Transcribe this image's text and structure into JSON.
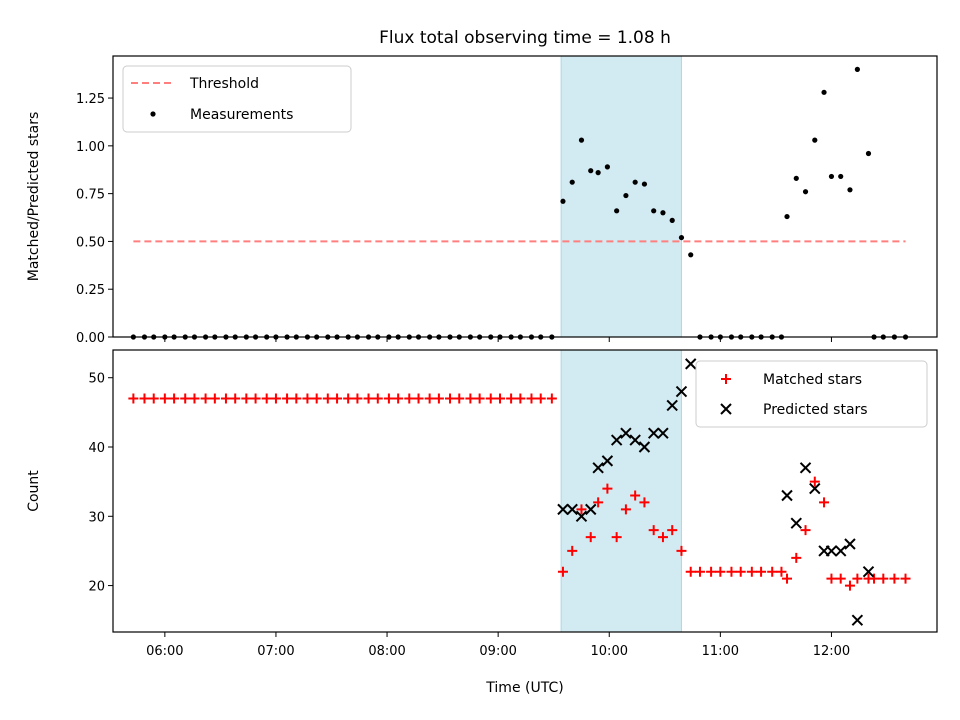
{
  "title": "Flux total observing time = 1.08 h",
  "colors": {
    "threshold": "#ff7f7f",
    "measurement": "#000000",
    "matched": "#ff0000",
    "predicted": "#000000",
    "span": "#add8e6"
  },
  "chart_data": [
    {
      "type": "scatter",
      "ylabel": "Matched/Predicted stars",
      "xlim": [
        "05:32",
        "12:57"
      ],
      "ylim": [
        0,
        1.47
      ],
      "yticks": [
        "0.00",
        "0.25",
        "0.50",
        "0.75",
        "1.00",
        "1.25"
      ],
      "highlight_span": [
        "09:34",
        "10:39"
      ],
      "legend": {
        "position": "top-left",
        "entries": [
          "Threshold",
          "Measurements"
        ]
      },
      "threshold": {
        "name": "Threshold",
        "y": 0.5,
        "x_range": [
          "05:43",
          "12:40"
        ]
      },
      "series": [
        {
          "name": "Measurements",
          "points": [
            [
              "05:43",
              0
            ],
            [
              "05:49",
              0
            ],
            [
              "05:54",
              0
            ],
            [
              "06:00",
              0
            ],
            [
              "06:05",
              0
            ],
            [
              "06:11",
              0
            ],
            [
              "06:16",
              0
            ],
            [
              "06:22",
              0
            ],
            [
              "06:27",
              0
            ],
            [
              "06:33",
              0
            ],
            [
              "06:38",
              0
            ],
            [
              "06:44",
              0
            ],
            [
              "06:49",
              0
            ],
            [
              "06:55",
              0
            ],
            [
              "07:00",
              0
            ],
            [
              "07:06",
              0
            ],
            [
              "07:11",
              0
            ],
            [
              "07:17",
              0
            ],
            [
              "07:22",
              0
            ],
            [
              "07:28",
              0
            ],
            [
              "07:33",
              0
            ],
            [
              "07:39",
              0
            ],
            [
              "07:44",
              0
            ],
            [
              "07:50",
              0
            ],
            [
              "07:55",
              0
            ],
            [
              "08:01",
              0
            ],
            [
              "08:06",
              0
            ],
            [
              "08:12",
              0
            ],
            [
              "08:17",
              0
            ],
            [
              "08:23",
              0
            ],
            [
              "08:28",
              0
            ],
            [
              "08:34",
              0
            ],
            [
              "08:39",
              0
            ],
            [
              "08:45",
              0
            ],
            [
              "08:50",
              0
            ],
            [
              "08:56",
              0
            ],
            [
              "09:01",
              0
            ],
            [
              "09:07",
              0
            ],
            [
              "09:12",
              0
            ],
            [
              "09:18",
              0
            ],
            [
              "09:23",
              0
            ],
            [
              "09:29",
              0
            ],
            [
              "09:35",
              0.71
            ],
            [
              "09:40",
              0.81
            ],
            [
              "09:45",
              1.03
            ],
            [
              "09:50",
              0.87
            ],
            [
              "09:54",
              0.86
            ],
            [
              "09:59",
              0.89
            ],
            [
              "10:04",
              0.66
            ],
            [
              "10:09",
              0.74
            ],
            [
              "10:14",
              0.81
            ],
            [
              "10:19",
              0.8
            ],
            [
              "10:24",
              0.66
            ],
            [
              "10:29",
              0.65
            ],
            [
              "10:34",
              0.61
            ],
            [
              "10:39",
              0.52
            ],
            [
              "10:44",
              0.43
            ],
            [
              "10:49",
              0
            ],
            [
              "10:55",
              0
            ],
            [
              "11:00",
              0
            ],
            [
              "11:06",
              0
            ],
            [
              "11:11",
              0
            ],
            [
              "11:17",
              0
            ],
            [
              "11:22",
              0
            ],
            [
              "11:28",
              0
            ],
            [
              "11:33",
              0
            ],
            [
              "11:36",
              0.63
            ],
            [
              "11:41",
              0.83
            ],
            [
              "11:46",
              0.76
            ],
            [
              "11:51",
              1.03
            ],
            [
              "11:56",
              1.28
            ],
            [
              "12:00",
              0.84
            ],
            [
              "12:05",
              0.84
            ],
            [
              "12:10",
              0.77
            ],
            [
              "12:14",
              1.4
            ],
            [
              "12:20",
              0.96
            ],
            [
              "12:23",
              0
            ],
            [
              "12:28",
              0
            ],
            [
              "12:34",
              0
            ],
            [
              "12:40",
              0
            ]
          ]
        }
      ]
    },
    {
      "type": "scatter",
      "xlabel": "Time (UTC)",
      "ylabel": "Count",
      "xlim": [
        "05:32",
        "12:57"
      ],
      "ylim": [
        13.3,
        54.0
      ],
      "yticks": [
        "20",
        "30",
        "40",
        "50"
      ],
      "xticks": [
        "06:00",
        "07:00",
        "08:00",
        "09:00",
        "10:00",
        "11:00",
        "12:00"
      ],
      "highlight_span": [
        "09:34",
        "10:39"
      ],
      "legend": {
        "position": "top-right",
        "entries": [
          "Matched stars",
          "Predicted stars"
        ]
      },
      "series": [
        {
          "name": "Matched stars",
          "marker": "+",
          "points": [
            [
              "05:43",
              47
            ],
            [
              "05:49",
              47
            ],
            [
              "05:54",
              47
            ],
            [
              "06:00",
              47
            ],
            [
              "06:05",
              47
            ],
            [
              "06:11",
              47
            ],
            [
              "06:16",
              47
            ],
            [
              "06:22",
              47
            ],
            [
              "06:27",
              47
            ],
            [
              "06:33",
              47
            ],
            [
              "06:38",
              47
            ],
            [
              "06:44",
              47
            ],
            [
              "06:49",
              47
            ],
            [
              "06:55",
              47
            ],
            [
              "07:00",
              47
            ],
            [
              "07:06",
              47
            ],
            [
              "07:11",
              47
            ],
            [
              "07:17",
              47
            ],
            [
              "07:22",
              47
            ],
            [
              "07:28",
              47
            ],
            [
              "07:33",
              47
            ],
            [
              "07:39",
              47
            ],
            [
              "07:44",
              47
            ],
            [
              "07:50",
              47
            ],
            [
              "07:55",
              47
            ],
            [
              "08:01",
              47
            ],
            [
              "08:06",
              47
            ],
            [
              "08:12",
              47
            ],
            [
              "08:17",
              47
            ],
            [
              "08:23",
              47
            ],
            [
              "08:28",
              47
            ],
            [
              "08:34",
              47
            ],
            [
              "08:39",
              47
            ],
            [
              "08:45",
              47
            ],
            [
              "08:50",
              47
            ],
            [
              "08:56",
              47
            ],
            [
              "09:01",
              47
            ],
            [
              "09:07",
              47
            ],
            [
              "09:12",
              47
            ],
            [
              "09:18",
              47
            ],
            [
              "09:23",
              47
            ],
            [
              "09:29",
              47
            ],
            [
              "09:35",
              22
            ],
            [
              "09:40",
              25
            ],
            [
              "09:45",
              31
            ],
            [
              "09:50",
              27
            ],
            [
              "09:54",
              32
            ],
            [
              "09:59",
              34
            ],
            [
              "10:04",
              27
            ],
            [
              "10:09",
              31
            ],
            [
              "10:14",
              33
            ],
            [
              "10:19",
              32
            ],
            [
              "10:24",
              28
            ],
            [
              "10:29",
              27
            ],
            [
              "10:34",
              28
            ],
            [
              "10:39",
              25
            ],
            [
              "10:44",
              22
            ],
            [
              "10:49",
              22
            ],
            [
              "10:55",
              22
            ],
            [
              "11:00",
              22
            ],
            [
              "11:06",
              22
            ],
            [
              "11:11",
              22
            ],
            [
              "11:17",
              22
            ],
            [
              "11:22",
              22
            ],
            [
              "11:28",
              22
            ],
            [
              "11:33",
              22
            ],
            [
              "11:36",
              21
            ],
            [
              "11:41",
              24
            ],
            [
              "11:46",
              28
            ],
            [
              "11:51",
              35
            ],
            [
              "11:56",
              32
            ],
            [
              "12:00",
              21
            ],
            [
              "12:05",
              21
            ],
            [
              "12:10",
              20
            ],
            [
              "12:14",
              21
            ],
            [
              "12:20",
              21
            ],
            [
              "12:23",
              21
            ],
            [
              "12:28",
              21
            ],
            [
              "12:34",
              21
            ],
            [
              "12:40",
              21
            ]
          ]
        },
        {
          "name": "Predicted stars",
          "marker": "x",
          "points": [
            [
              "09:35",
              31
            ],
            [
              "09:40",
              31
            ],
            [
              "09:45",
              30
            ],
            [
              "09:50",
              31
            ],
            [
              "09:54",
              37
            ],
            [
              "09:59",
              38
            ],
            [
              "10:04",
              41
            ],
            [
              "10:09",
              42
            ],
            [
              "10:14",
              41
            ],
            [
              "10:19",
              40
            ],
            [
              "10:24",
              42
            ],
            [
              "10:29",
              42
            ],
            [
              "10:34",
              46
            ],
            [
              "10:39",
              48
            ],
            [
              "10:44",
              52
            ],
            [
              "11:36",
              33
            ],
            [
              "11:41",
              29
            ],
            [
              "11:46",
              37
            ],
            [
              "11:51",
              34
            ],
            [
              "11:56",
              25
            ],
            [
              "12:00",
              25
            ],
            [
              "12:05",
              25
            ],
            [
              "12:10",
              26
            ],
            [
              "12:14",
              15
            ],
            [
              "12:20",
              22
            ]
          ]
        }
      ]
    }
  ]
}
